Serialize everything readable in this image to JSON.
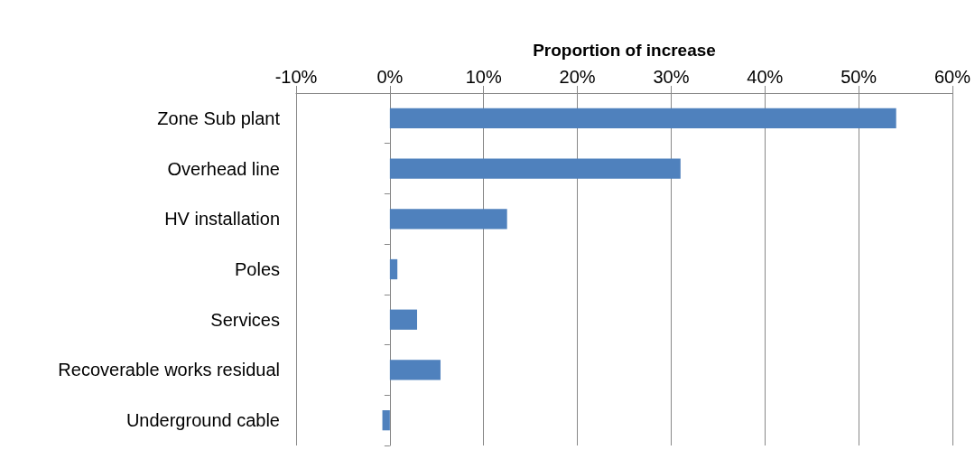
{
  "chart_data": {
    "type": "bar",
    "orientation": "horizontal",
    "xlabel": "Proportion of increase",
    "categories": [
      "Zone Sub plant",
      "Overhead line",
      "HV installation",
      "Poles",
      "Services",
      "Recoverable works residual",
      "Underground cable"
    ],
    "values": [
      54.0,
      31.0,
      12.5,
      0.8,
      2.9,
      5.4,
      -0.8
    ],
    "color": "#4f81bd",
    "xlim": [
      -10,
      60
    ],
    "xticks": [
      {
        "value": -10,
        "label": "-10%"
      },
      {
        "value": 0,
        "label": "0%"
      },
      {
        "value": 10,
        "label": "10%"
      },
      {
        "value": 20,
        "label": "20%"
      },
      {
        "value": 30,
        "label": "30%"
      },
      {
        "value": 40,
        "label": "40%"
      },
      {
        "value": 50,
        "label": "50%"
      },
      {
        "value": 60,
        "label": "60%"
      }
    ],
    "grid": "x"
  }
}
